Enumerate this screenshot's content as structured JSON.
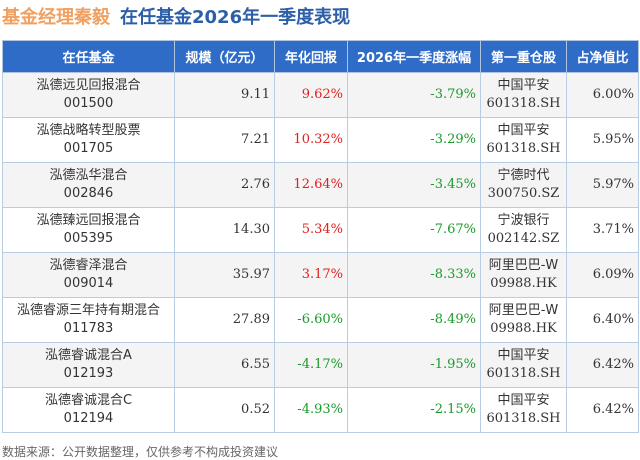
{
  "title": {
    "manager": "基金经理秦毅",
    "subtitle": "在任基金2026年一季度表现"
  },
  "headers": [
    "在任基金",
    "规模（亿元）",
    "年化回报",
    "2026年一季度涨幅",
    "第一重仓股",
    "占净值比"
  ],
  "rows": [
    {
      "name": "泓德远见回报混合",
      "code": "001500",
      "size": "9.11",
      "annual": "9.62%",
      "q1": "-3.79%",
      "stock": "中国平安",
      "stock_code": "601318.SH",
      "ratio": "6.00%"
    },
    {
      "name": "泓德战略转型股票",
      "code": "001705",
      "size": "7.21",
      "annual": "10.32%",
      "q1": "-3.29%",
      "stock": "中国平安",
      "stock_code": "601318.SH",
      "ratio": "5.95%"
    },
    {
      "name": "泓德泓华混合",
      "code": "002846",
      "size": "2.76",
      "annual": "12.64%",
      "q1": "-3.45%",
      "stock": "宁德时代",
      "stock_code": "300750.SZ",
      "ratio": "5.97%"
    },
    {
      "name": "泓德臻远回报混合",
      "code": "005395",
      "size": "14.30",
      "annual": "5.34%",
      "q1": "-7.67%",
      "stock": "宁波银行",
      "stock_code": "002142.SZ",
      "ratio": "3.71%"
    },
    {
      "name": "泓德睿泽混合",
      "code": "009014",
      "size": "35.97",
      "annual": "3.17%",
      "q1": "-8.33%",
      "stock": "阿里巴巴-W",
      "stock_code": "09988.HK",
      "ratio": "6.09%"
    },
    {
      "name": "泓德睿源三年持有期混合",
      "code": "011783",
      "size": "27.89",
      "annual": "-6.60%",
      "q1": "-8.49%",
      "stock": "阿里巴巴-W",
      "stock_code": "09988.HK",
      "ratio": "6.40%"
    },
    {
      "name": "泓德睿诚混合A",
      "code": "012193",
      "size": "6.55",
      "annual": "-4.17%",
      "q1": "-1.95%",
      "stock": "中国平安",
      "stock_code": "601318.SH",
      "ratio": "6.42%"
    },
    {
      "name": "泓德睿诚混合C",
      "code": "012194",
      "size": "0.52",
      "annual": "-4.93%",
      "q1": "-2.15%",
      "stock": "中国平安",
      "stock_code": "601318.SH",
      "ratio": "6.42%"
    }
  ],
  "footer": "数据来源：公开数据整理，仅供参考不构成投资建议",
  "colors": {
    "header": "#2f6cc8",
    "positive": "#e02020",
    "negative": "#1a9a2a"
  }
}
